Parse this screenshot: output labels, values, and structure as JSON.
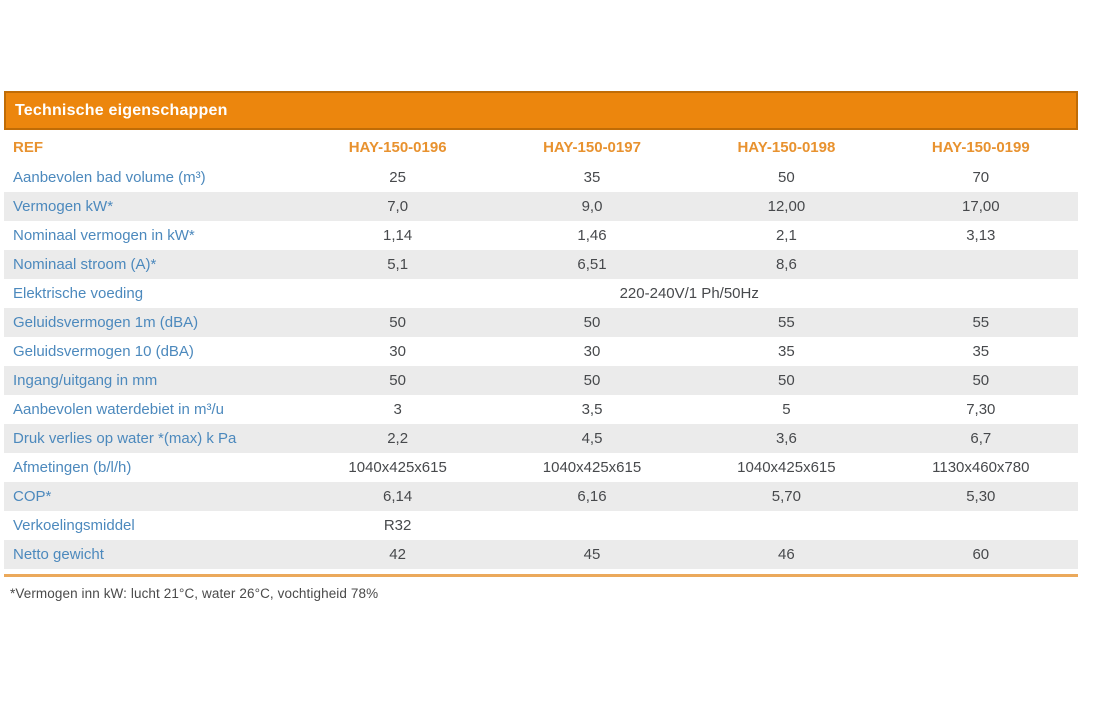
{
  "table": {
    "title": "Technische eigenschappen",
    "ref_label": "REF",
    "columns": [
      "HAY-150-0196",
      "HAY-150-0197",
      "HAY-150-0198",
      "HAY-150-0199"
    ],
    "rows": [
      {
        "label": "Aanbevolen bad volume (m³)",
        "values": [
          "25",
          "35",
          "50",
          "70"
        ]
      },
      {
        "label": "Vermogen kW*",
        "values": [
          "7,0",
          "9,0",
          "12,00",
          "17,00"
        ]
      },
      {
        "label": "Nominaal vermogen in kW*",
        "values": [
          "1,14",
          "1,46",
          "2,1",
          "3,13"
        ]
      },
      {
        "label": "Nominaal stroom (A)*",
        "values": [
          "5,1",
          "6,51",
          "8,6",
          ""
        ]
      },
      {
        "label": "Elektrische voeding",
        "span_value": "220-240V/1 Ph/50Hz"
      },
      {
        "label": "Geluidsvermogen 1m (dBA)",
        "values": [
          "50",
          "50",
          "55",
          "55"
        ]
      },
      {
        "label": "Geluidsvermogen 10 (dBA)",
        "values": [
          "30",
          "30",
          "35",
          "35"
        ]
      },
      {
        "label": "Ingang/uitgang in mm",
        "values": [
          "50",
          "50",
          "50",
          "50"
        ]
      },
      {
        "label": "Aanbevolen waterdebiet in m³/u",
        "values": [
          "3",
          "3,5",
          "5",
          "7,30"
        ]
      },
      {
        "label": "Druk verlies op water *(max) k Pa",
        "values": [
          "2,2",
          "4,5",
          "3,6",
          "6,7"
        ]
      },
      {
        "label": "Afmetingen (b/l/h)",
        "values": [
          "1040x425x615",
          "1040x425x615",
          "1040x425x615",
          "1130x460x780"
        ]
      },
      {
        "label": "COP*",
        "values": [
          "6,14",
          "6,16",
          "5,70",
          "5,30"
        ]
      },
      {
        "label": "Verkoelingsmiddel",
        "values": [
          "R32",
          "",
          "",
          ""
        ]
      },
      {
        "label": "Netto gewicht",
        "values": [
          "42",
          "45",
          "46",
          "60"
        ]
      }
    ],
    "footnote": "*Vermogen inn kW: lucht 21°C, water 26°C, vochtigheid 78%"
  },
  "colors": {
    "accent_orange": "#EC860D",
    "accent_orange_dark": "#C06C06",
    "column_header_orange": "#E8922F",
    "label_blue": "#4C89BD",
    "value_gray": "#47494C",
    "band_gray": "#EBEBEB",
    "bottom_rule_orange": "#EBA95B",
    "title_text": "#FFFFFF"
  }
}
